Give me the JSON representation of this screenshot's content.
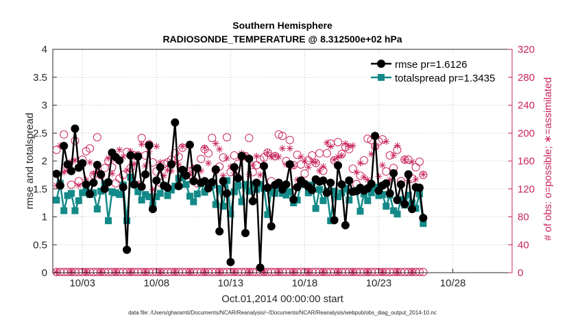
{
  "chart_data": {
    "type": "line",
    "title": "Southern Hemisphere",
    "subtitle": "RADIOSONDE_TEMPERATURE @ 8.312500e+02 hPa",
    "xlabel": "Oct.01,2014 00:00:00 start",
    "ylabel": "rmse and totalspread",
    "ylabel_right": "# of obs: o=possible; ∗=assimilated",
    "footer": "data file: /Users/gharamti/Documents/NCAR/Reanalysis/~/Documents/NCAR/Reanalysis/webpub/obs_diag_output_2014-10.nc",
    "ylim": [
      0,
      4
    ],
    "ylim_right": [
      0,
      320
    ],
    "xlim": [
      1,
      32
    ],
    "yticks": [
      "0",
      "0.5",
      "1",
      "1.5",
      "2",
      "2.5",
      "3",
      "3.5",
      "4"
    ],
    "yticks_right": [
      "0",
      "40",
      "80",
      "120",
      "160",
      "200",
      "240",
      "280",
      "320"
    ],
    "xticks": [
      {
        "label": "10/03",
        "day": 3
      },
      {
        "label": "10/08",
        "day": 8
      },
      {
        "label": "10/13",
        "day": 13
      },
      {
        "label": "10/18",
        "day": 18
      },
      {
        "label": "10/23",
        "day": 23
      },
      {
        "label": "10/28",
        "day": 28
      }
    ],
    "grid": true,
    "legend_position": "top-right",
    "legend": [
      "rmse pr=1.6126",
      "totalspread pr=1.3435"
    ],
    "colors": {
      "rmse": "#000000",
      "spread": "#138a88",
      "obs": "#c8245c",
      "grid": "#c8c8c8",
      "axis": "#262626"
    },
    "x_start_day": 1.25,
    "x_step_days": 0.25,
    "series": [
      {
        "name": "rmse",
        "values": [
          1.77,
          1.56,
          2.27,
          1.94,
          1.82,
          2.58,
          1.88,
          1.96,
          1.58,
          1.41,
          1.61,
          1.93,
          1.76,
          1.5,
          1.62,
          2.15,
          2.07,
          2.01,
          1.53,
          0.41,
          2.1,
          1.58,
          2.08,
          1.54,
          1.76,
          2.28,
          1.14,
          1.65,
          1.89,
          1.56,
          1.52,
          1.94,
          2.69,
          1.55,
          1.84,
          1.74,
          2.29,
          1.64,
          1.87,
          1.61,
          1.64,
          1.51,
          1.62,
          1.85,
          0.74,
          1.64,
          1.42,
          0.19,
          1.89,
          1.69,
          2.09,
          0.71,
          2.04,
          1.28,
          1.61,
          0.09,
          1.91,
          1.52,
          0.83,
          1.57,
          1.61,
          1.49,
          1.58,
          1.94,
          1.31,
          1.53,
          1.65,
          1.59,
          1.54,
          1.48,
          1.67,
          1.63,
          1.65,
          1.43,
          1.61,
          0.94,
          1.92,
          1.58,
          0.85,
          1.65,
          1.45,
          1.46,
          1.52,
          1.47,
          1.51,
          1.59,
          2.45,
          1.47,
          1.56,
          1.6,
          1.42,
          1.78,
          1.3,
          1.58,
          1.23,
          1.76,
          1.14,
          1.53,
          1.52,
          0.98
        ]
      },
      {
        "name": "totalspread",
        "values": [
          1.3,
          1.6,
          1.11,
          1.38,
          1.42,
          1.11,
          1.29,
          1.43,
          1.46,
          1.4,
          1.43,
          1.14,
          1.46,
          1.6,
          0.93,
          1.45,
          1.43,
          1.4,
          1.57,
          0.93,
          1.71,
          1.58,
          1.45,
          1.3,
          1.4,
          1.36,
          1.21,
          1.36,
          1.42,
          1.56,
          1.38,
          1.48,
          1.55,
          1.69,
          1.71,
          1.58,
          1.37,
          1.27,
          1.41,
          1.6,
          1.44,
          1.53,
          1.57,
          1.22,
          1.51,
          1.19,
          1.65,
          1.05,
          1.45,
          1.56,
          1.27,
          1.58,
          1.46,
          1.58,
          1.49,
          1.58,
          1.51,
          1.04,
          1.46,
          1.42,
          1.57,
          1.42,
          1.39,
          1.45,
          1.25,
          1.3,
          1.58,
          1.58,
          1.43,
          1.57,
          1.15,
          1.49,
          1.29,
          1.46,
          0.93,
          1.46,
          1.36,
          1.43,
          1.51,
          1.3,
          1.45,
          1.47,
          1.1,
          1.41,
          1.29,
          1.43,
          1.53,
          1.38,
          1.4,
          1.19,
          1.39,
          1.11,
          1.05,
          1.31,
          1.21,
          1.39,
          1.25,
          1.15,
          1.41,
          0.88
        ]
      },
      {
        "name": "obs_possible",
        "values": [
          176,
          125,
          198,
          150,
          126,
          189,
          131,
          162,
          174,
          178,
          140,
          194,
          140,
          150,
          160,
          151,
          128,
          135,
          140,
          173,
          150,
          168,
          168,
          193,
          168,
          184,
          158,
          145,
          129,
          156,
          158,
          162,
          171,
          166,
          179,
          133,
          145,
          148,
          128,
          163,
          177,
          171,
          193,
          147,
          152,
          165,
          194,
          144,
          168,
          156,
          166,
          167,
          193,
          144,
          154,
          162,
          165,
          172,
          131,
          167,
          198,
          196,
          160,
          190,
          154,
          169,
          155,
          142,
          161,
          168,
          157,
          171,
          146,
          171,
          185,
          161,
          187,
          170,
          180,
          177,
          149,
          127,
          139,
          161,
          192,
          190,
          181,
          188,
          191,
          145,
          168,
          150,
          176,
          131,
          162,
          162,
          135,
          151,
          159,
          140
        ]
      },
      {
        "name": "obs_assimilated",
        "values": [
          125,
          182,
          144,
          147,
          159,
          161,
          125,
          153,
          133,
          158,
          142,
          145,
          138,
          126,
          164,
          142,
          162,
          176,
          166,
          147,
          174,
          156,
          128,
          184,
          153,
          174,
          119,
          181,
          158,
          139,
          147,
          146,
          158,
          155,
          181,
          144,
          141,
          150,
          131,
          146,
          179,
          157,
          130,
          185,
          177,
          139,
          164,
          152,
          143,
          138,
          171,
          168,
          141,
          154,
          167,
          140,
          154,
          172,
          166,
          168,
          166,
          178,
          155,
          178,
          153,
          133,
          166,
          160,
          151,
          159,
          158,
          146,
          152,
          186,
          181,
          162,
          166,
          168,
          185,
          181,
          182,
          144,
          157,
          137,
          133,
          170,
          180,
          138,
          154,
          188,
          133,
          168,
          182,
          128,
          162,
          132,
          159,
          134,
          123,
          141
        ]
      },
      {
        "name": "obs_possible_bottom",
        "values": [
          0,
          0,
          0,
          0,
          0,
          0,
          0,
          0,
          0,
          0,
          0,
          0,
          0,
          0,
          0,
          0,
          0,
          0,
          0,
          0,
          0,
          0,
          0,
          0,
          0,
          0,
          0,
          0,
          0,
          0,
          0,
          0,
          0,
          0,
          0,
          0,
          0,
          0,
          0,
          0,
          0,
          0,
          0,
          0,
          0,
          0,
          0,
          0,
          0,
          0,
          0,
          0,
          0,
          0,
          0,
          0,
          0,
          0,
          0,
          0,
          0,
          0,
          0,
          0,
          0,
          0,
          0,
          0,
          0,
          0,
          0,
          0,
          0,
          0,
          0,
          0,
          0,
          0,
          0,
          0,
          0,
          0,
          0,
          0,
          0,
          0,
          0,
          0,
          0,
          0,
          0,
          0,
          0,
          0,
          0,
          0,
          0,
          0,
          0,
          0
        ]
      }
    ]
  }
}
